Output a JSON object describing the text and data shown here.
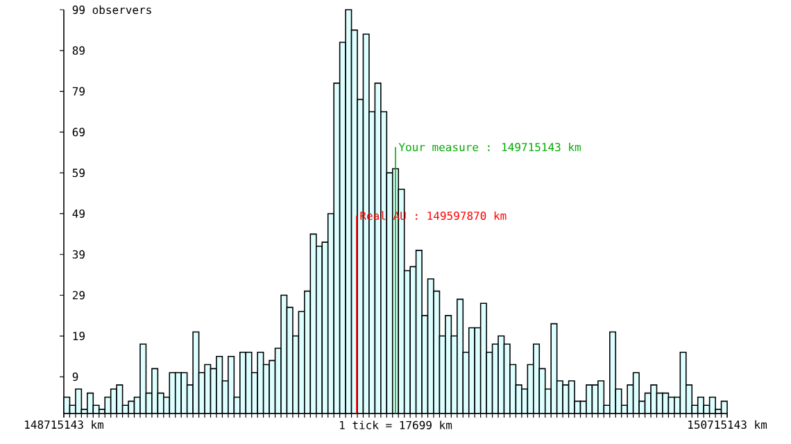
{
  "chart_data": {
    "type": "histogram",
    "bins": [
      148715143,
      148732842,
      148750541,
      148768240,
      148785939,
      148803638,
      148821337,
      148839036,
      148856735,
      148874434,
      148892133,
      148909832,
      148927531,
      148945230,
      148962929,
      148980628,
      148998327,
      149016026,
      149033725,
      149051424,
      149069123,
      149086822,
      149104521,
      149122220,
      149139919,
      149157618,
      149175317,
      149193016,
      149210715,
      149228414,
      149246113,
      149263812,
      149281511,
      149299210,
      149316909,
      149334608,
      149352307,
      149370006,
      149387705,
      149405404,
      149423103,
      149440802,
      149458501,
      149476200,
      149493899,
      149511598,
      149529297,
      149546996,
      149564695,
      149582394,
      149600093,
      149617792,
      149635491,
      149653190,
      149670889,
      149688588,
      149706287,
      149723986,
      149741685,
      149759384,
      149777083,
      149794782,
      149812481,
      149830180,
      149847879,
      149865578,
      149883277,
      149900976,
      149918675,
      149936374,
      149954073,
      149971772,
      149989471,
      150007170,
      150024869,
      150042568,
      150060267,
      150077966,
      150095665,
      150113364,
      150131063,
      150148762,
      150166461,
      150184160,
      150201859,
      150219558,
      150237257,
      150254956,
      150272655,
      150290354,
      150308053,
      150325752,
      150343451,
      150361150,
      150378849,
      150396548,
      150414247,
      150431946,
      150449645,
      150467344,
      150485043,
      150502742,
      150520441,
      150538140,
      150555839,
      150573538,
      150591237,
      150608936,
      150626635,
      150644334,
      150662033,
      150679732,
      150697431,
      150715130
    ],
    "values": [
      4,
      2,
      6,
      1,
      5,
      2,
      1,
      4,
      6,
      7,
      2,
      3,
      4,
      17,
      5,
      11,
      5,
      4,
      10,
      10,
      10,
      7,
      20,
      10,
      12,
      11,
      14,
      8,
      14,
      4,
      15,
      15,
      10,
      15,
      12,
      13,
      16,
      29,
      26,
      19,
      25,
      30,
      44,
      41,
      42,
      49,
      81,
      91,
      99,
      94,
      77,
      93,
      74,
      81,
      74,
      59,
      60,
      55,
      35,
      36,
      40,
      24,
      33,
      30,
      19,
      24,
      19,
      28,
      15,
      21,
      21,
      27,
      15,
      17,
      19,
      17,
      12,
      7,
      6,
      12,
      17,
      11,
      6,
      22,
      8,
      7,
      8,
      3,
      3,
      7,
      7,
      8,
      2,
      20,
      6,
      2,
      7,
      10,
      3,
      5,
      7,
      5,
      5,
      4,
      4,
      15,
      7,
      2,
      4,
      2,
      4,
      1,
      3
    ],
    "color": "#ddffff",
    "xlim": [
      148715143,
      150715143
    ],
    "xticks": [
      {
        "value": 148715143,
        "label": "148715143 km"
      },
      {
        "value": 150715143,
        "label": "150715143 km"
      }
    ],
    "ylim": [
      0,
      99
    ],
    "yticks": [
      9,
      19,
      29,
      39,
      49,
      59,
      69,
      79,
      89,
      {
        "value": 99,
        "label": "99 observers"
      }
    ],
    "ref_lines": [
      {
        "axis": "x",
        "value": 149597870,
        "label": "Real AU : 149597870 km",
        "color": "#ff0000"
      },
      {
        "axis": "x",
        "value": 149715143,
        "label": "Your measure : 149715143 km",
        "color": "#00aa00"
      }
    ],
    "annotations": [
      "1 tick = 17699 km"
    ]
  }
}
